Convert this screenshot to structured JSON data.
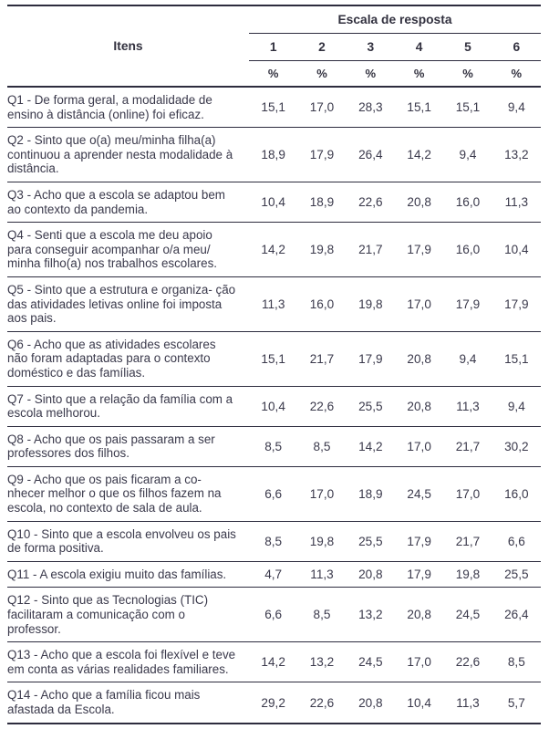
{
  "table": {
    "header": {
      "items_label": "Itens",
      "scale_label": "Escala de resposta",
      "scale_columns": [
        "1",
        "2",
        "3",
        "4",
        "5",
        "6"
      ],
      "unit_row": [
        "%",
        "%",
        "%",
        "%",
        "%",
        "%"
      ]
    },
    "rows": [
      {
        "item": "Q1 - De forma geral, a modalidade de ensino à distância (online) foi eficaz.",
        "values": [
          "15,1",
          "17,0",
          "28,3",
          "15,1",
          "15,1",
          "9,4"
        ]
      },
      {
        "item": "Q2 - Sinto que o(a) meu/minha filha(a) continuou a aprender nesta modalidade à distância.",
        "values": [
          "18,9",
          "17,9",
          "26,4",
          "14,2",
          "9,4",
          "13,2"
        ]
      },
      {
        "item": "Q3 - Acho que a escola se adaptou bem ao contexto da pandemia.",
        "values": [
          "10,4",
          "18,9",
          "22,6",
          "20,8",
          "16,0",
          "11,3"
        ]
      },
      {
        "item": "Q4 - Senti que a escola me deu apoio para conseguir acompanhar o/a meu/ minha filho(a) nos trabalhos escolares.",
        "values": [
          "14,2",
          "19,8",
          "21,7",
          "17,9",
          "16,0",
          "10,4"
        ]
      },
      {
        "item": "Q5 - Sinto que a estrutura e organiza- ção das atividades letivas online foi imposta aos pais.",
        "values": [
          "11,3",
          "16,0",
          "19,8",
          "17,0",
          "17,9",
          "17,9"
        ]
      },
      {
        "item": "Q6 - Acho que as atividades escolares não foram adaptadas para o contexto doméstico e das famílias.",
        "values": [
          "15,1",
          "21,7",
          "17,9",
          "20,8",
          "9,4",
          "15,1"
        ]
      },
      {
        "item": "Q7 - Sinto que a relação da família com a escola melhorou.",
        "values": [
          "10,4",
          "22,6",
          "25,5",
          "20,8",
          "11,3",
          "9,4"
        ]
      },
      {
        "item": "Q8 - Acho que os pais passaram a ser professores dos filhos.",
        "values": [
          "8,5",
          "8,5",
          "14,2",
          "17,0",
          "21,7",
          "30,2"
        ]
      },
      {
        "item": "Q9 - Acho que os pais ficaram a co- nhecer melhor o que os filhos fazem na escola, no contexto de sala de aula.",
        "values": [
          "6,6",
          "17,0",
          "18,9",
          "24,5",
          "17,0",
          "16,0"
        ]
      },
      {
        "item": "Q10 - Sinto que a escola envolveu os pais de forma positiva.",
        "values": [
          "8,5",
          "19,8",
          "25,5",
          "17,9",
          "21,7",
          "6,6"
        ]
      },
      {
        "item": "Q11 - A escola exigiu muito das famílias.",
        "values": [
          "4,7",
          "11,3",
          "20,8",
          "17,9",
          "19,8",
          "25,5"
        ]
      },
      {
        "item": "Q12 - Sinto que as Tecnologias (TIC) facilitaram a comunicação com o professor.",
        "values": [
          "6,6",
          "8,5",
          "13,2",
          "20,8",
          "24,5",
          "26,4"
        ]
      },
      {
        "item": "Q13 - Acho que a escola foi flexível e teve em conta as várias realidades familiares.",
        "values": [
          "14,2",
          "13,2",
          "24,5",
          "17,0",
          "22,6",
          "8,5"
        ]
      },
      {
        "item": "Q14 - Acho que a família ficou mais afastada da Escola.",
        "values": [
          "29,2",
          "22,6",
          "20,8",
          "10,4",
          "11,3",
          "5,7"
        ]
      }
    ]
  },
  "colors": {
    "text": "#3a394b",
    "header_text": "#32313f",
    "rule": "#2d2c3e",
    "background": "#ffffff"
  }
}
